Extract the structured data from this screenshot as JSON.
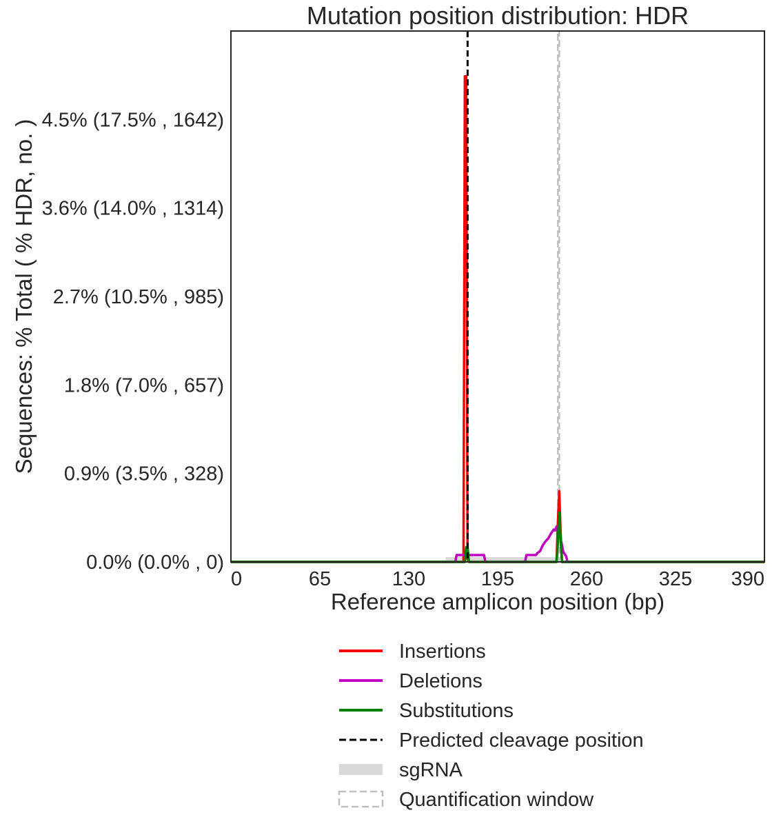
{
  "chart_data": {
    "type": "line",
    "title": "Mutation position distribution: HDR",
    "xlabel": "Reference amplicon position (bp)",
    "ylabel": "Sequences: % Total ( % HDR, no. )",
    "xlim": [
      0,
      390
    ],
    "ylim": [
      0,
      0.054
    ],
    "xticks": [
      0,
      65,
      130,
      195,
      260,
      325,
      390
    ],
    "xtick_labels": [
      "0",
      "65",
      "130",
      "195",
      "260",
      "325",
      "390"
    ],
    "yticks": [
      0,
      0.009,
      0.018,
      0.027,
      0.036,
      0.045
    ],
    "ytick_labels": [
      "0.0% (0.0% , 0)",
      "0.9% (3.5% , 328)",
      "1.8% (7.0% , 657)",
      "2.7% (10.5% , 985)",
      "3.6% (14.0% , 1314)",
      "4.5% (17.5% , 1642)"
    ],
    "grid": false,
    "legend_position": "below",
    "series": [
      {
        "name": "Insertions",
        "color": "#ff0000",
        "x": [
          0,
          170,
          171,
          172,
          173,
          174,
          175,
          238,
          239,
          240,
          241,
          242,
          390
        ],
        "y": [
          0,
          0,
          0.0494,
          0.0494,
          0.0003,
          0,
          0,
          0,
          0.004,
          0.0072,
          0.003,
          0,
          0
        ]
      },
      {
        "name": "Deletions",
        "color": "#bf00bf",
        "x": [
          0,
          164,
          165,
          170,
          171,
          172,
          173,
          174,
          185,
          186,
          215,
          216,
          223,
          224,
          226,
          228,
          230,
          232,
          234,
          236,
          237,
          238,
          240,
          242,
          243,
          245,
          246,
          390
        ],
        "y": [
          0,
          0,
          0.0007,
          0.0007,
          0.0006,
          0.0008,
          0.0007,
          0.0007,
          0.0007,
          0,
          0,
          0.0007,
          0.0007,
          0.0009,
          0.0011,
          0.0017,
          0.0021,
          0.0024,
          0.0029,
          0.0033,
          0.0032,
          0.0036,
          0.003,
          0.0017,
          0.001,
          0.0006,
          0,
          0
        ]
      },
      {
        "name": "Substitutions",
        "color": "#008000",
        "x": [
          0,
          171,
          172,
          173,
          174,
          238,
          239,
          240,
          241,
          242,
          390
        ],
        "y": [
          0,
          0,
          0.0015,
          0.0015,
          0,
          0,
          0.002,
          0.005,
          0.0025,
          0,
          0
        ]
      }
    ],
    "cleavage_positions": [
      173
    ],
    "sgrna_range": [
      157,
      240
    ],
    "quantification_window": [
      239,
      240
    ],
    "legend": [
      {
        "label": "Insertions",
        "style": "line",
        "color": "#ff0000"
      },
      {
        "label": "Deletions",
        "style": "line",
        "color": "#bf00bf"
      },
      {
        "label": "Substitutions",
        "style": "line",
        "color": "#008000"
      },
      {
        "label": "Predicted cleavage position",
        "style": "dashed",
        "color": "#000000"
      },
      {
        "label": "sgRNA",
        "style": "band",
        "color": "#d9d9d9"
      },
      {
        "label": "Quantification window",
        "style": "dashed-box",
        "color": "#bfbfbf"
      }
    ]
  }
}
